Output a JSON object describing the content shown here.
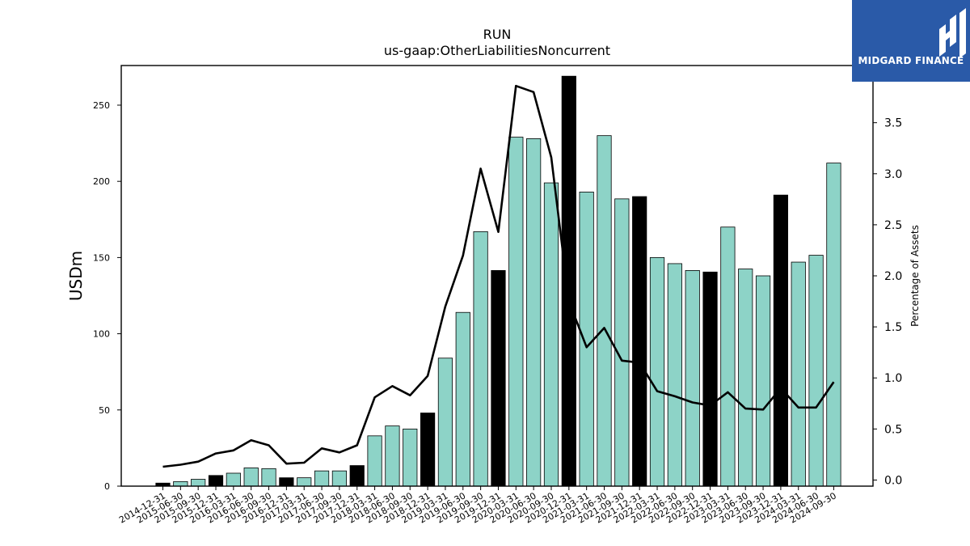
{
  "brand": {
    "name": "MIDGARD FINANCE",
    "bg_color": "#2a5aa8"
  },
  "chart_data": {
    "type": "bar",
    "title": "RUN",
    "subtitle": "us-gaap:OtherLiabilitiesNoncurrent",
    "ylabel": "USDm",
    "y2label": "Percentage of Assets",
    "ylim": [
      0,
      276
    ],
    "y2lim": [
      -0.06,
      4.06
    ],
    "yticks": [
      0,
      50,
      100,
      150,
      200,
      250
    ],
    "y2ticks": [
      0.0,
      0.5,
      1.0,
      1.5,
      2.0,
      2.5,
      3.0,
      3.5
    ],
    "colors": {
      "quarter": "#8dd3c7",
      "year_end": "#000000",
      "line": "#000000"
    },
    "categories": [
      "2014-12-31",
      "2015-06-30",
      "2015-09-30",
      "2015-12-31",
      "2016-03-31",
      "2016-06-30",
      "2016-09-30",
      "2016-12-31",
      "2017-03-31",
      "2017-06-30",
      "2017-09-30",
      "2017-12-31",
      "2018-03-31",
      "2018-06-30",
      "2018-09-30",
      "2018-12-31",
      "2019-03-31",
      "2019-06-30",
      "2019-09-30",
      "2019-12-31",
      "2020-03-31",
      "2020-06-30",
      "2020-09-30",
      "2020-12-31",
      "2021-03-31",
      "2021-06-30",
      "2021-09-30",
      "2021-12-31",
      "2022-03-31",
      "2022-06-30",
      "2022-09-30",
      "2022-12-31",
      "2023-03-31",
      "2023-06-30",
      "2023-09-30",
      "2023-12-31",
      "2024-03-31",
      "2024-06-30",
      "2024-09-30"
    ],
    "series": [
      {
        "kind": "bar",
        "values": [
          2,
          3,
          4.5,
          7,
          8.5,
          12,
          11.5,
          5.5,
          5.5,
          10,
          10,
          13.5,
          33,
          39.5,
          37.5,
          48,
          84,
          114,
          167,
          141.5,
          229,
          228,
          199,
          269,
          193,
          230,
          188.5,
          190,
          150,
          146,
          141.5,
          140.5,
          170,
          142.5,
          138,
          191,
          147,
          151.5,
          212
        ]
      },
      {
        "kind": "line",
        "axis": "right",
        "values": [
          0.13,
          0.15,
          0.18,
          0.26,
          0.29,
          0.39,
          0.34,
          0.16,
          0.17,
          0.31,
          0.27,
          0.34,
          0.81,
          0.92,
          0.83,
          1.02,
          1.7,
          2.2,
          3.05,
          2.43,
          3.86,
          3.8,
          3.16,
          1.75,
          1.3,
          1.49,
          1.17,
          1.15,
          0.87,
          0.82,
          0.76,
          0.73,
          0.86,
          0.7,
          0.69,
          0.9,
          0.71,
          0.71,
          0.96
        ]
      }
    ],
    "year_end_flags": [
      1,
      0,
      0,
      1,
      0,
      0,
      0,
      1,
      0,
      0,
      0,
      1,
      0,
      0,
      0,
      1,
      0,
      0,
      0,
      1,
      0,
      0,
      0,
      1,
      0,
      0,
      0,
      1,
      0,
      0,
      0,
      1,
      0,
      0,
      0,
      1,
      0,
      0,
      0
    ]
  }
}
